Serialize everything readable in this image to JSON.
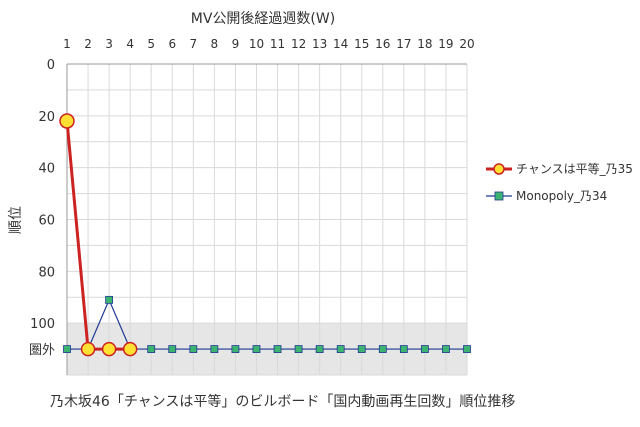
{
  "chart_data": {
    "type": "line",
    "title": "",
    "xlabel": "MV公開後経過週数(W)",
    "ylabel": "順位",
    "caption": "乃木坂46「チャンスは平等」のビルボード「国内動画再生回数」順位推移",
    "x": [
      1,
      2,
      3,
      4,
      5,
      6,
      7,
      8,
      9,
      10,
      11,
      12,
      13,
      14,
      15,
      16,
      17,
      18,
      19,
      20
    ],
    "x_tick_labels": [
      "1",
      "2",
      "3",
      "4",
      "5",
      "6",
      "7",
      "8",
      "9",
      "10",
      "11",
      "12",
      "13",
      "14",
      "15",
      "16",
      "17",
      "18",
      "19",
      "20"
    ],
    "ylim": [
      0,
      120
    ],
    "y_inverted": true,
    "y_ticks": [
      0,
      20,
      40,
      60,
      80,
      100
    ],
    "y_tick_labels": [
      "0",
      "20",
      "40",
      "60",
      "80",
      "100"
    ],
    "out_of_chart_label": "圏外",
    "out_of_chart_value": 110,
    "shaded_band": [
      100,
      120
    ],
    "grid": true,
    "legend_position": "right",
    "series": [
      {
        "name": "チャンスは平等_乃35",
        "color": "#cc2222",
        "marker_color": "#ffe033",
        "marker": "circle",
        "x": [
          1,
          2,
          3,
          4
        ],
        "values": [
          22,
          110,
          110,
          110
        ]
      },
      {
        "name": "Monopoly_乃34",
        "color": "#1f3a93",
        "marker_color": "#3cb371",
        "marker": "square",
        "x": [
          1,
          2,
          3,
          4,
          5,
          6,
          7,
          8,
          9,
          10,
          11,
          12,
          13,
          14,
          15,
          16,
          17,
          18,
          19,
          20
        ],
        "values": [
          110,
          110,
          91,
          110,
          110,
          110,
          110,
          110,
          110,
          110,
          110,
          110,
          110,
          110,
          110,
          110,
          110,
          110,
          110,
          110
        ]
      }
    ]
  }
}
